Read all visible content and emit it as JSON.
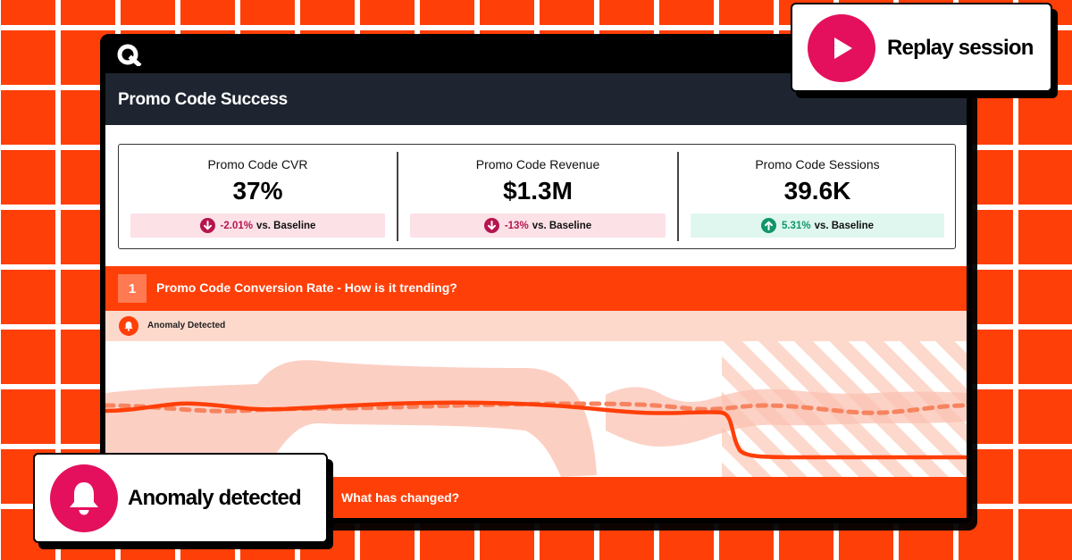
{
  "dashboard": {
    "title": "Promo Code Success",
    "kpis": [
      {
        "label": "Promo Code CVR",
        "value": "37%",
        "delta": "-2.01%",
        "delta_suffix": "vs. Baseline",
        "trend": "down"
      },
      {
        "label": "Promo Code Revenue",
        "value": "$1.3M",
        "delta": "-13%",
        "delta_suffix": "vs. Baseline",
        "trend": "down"
      },
      {
        "label": "Promo Code Sessions",
        "value": "39.6K",
        "delta": "5.31%",
        "delta_suffix": "vs. Baseline",
        "trend": "up"
      }
    ]
  },
  "section1": {
    "number": "1",
    "title": "Promo Code Conversion Rate - How is it trending?",
    "alert_label": "Anomaly Detected"
  },
  "section2": {
    "title": "What has changed?"
  },
  "callouts": {
    "replay": "Replay session",
    "anomaly": "Anomaly detected"
  },
  "colors": {
    "brand_orange": "#FF3F08",
    "accent_pink": "#E5105D",
    "negative": "#B5154E",
    "positive": "#11956B",
    "header_dark": "#1E2530"
  },
  "icons": {
    "logo": "quantum-metric-logo",
    "replay": "play-icon",
    "anomaly": "bell-icon",
    "negative_delta": "arrow-down-circle-icon",
    "positive_delta": "arrow-up-circle-icon"
  }
}
